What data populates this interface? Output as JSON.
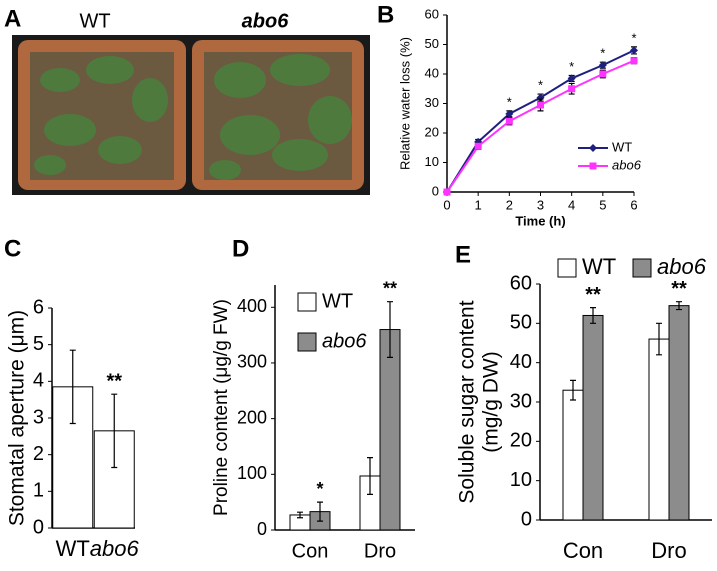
{
  "photo": {
    "panel": "A",
    "labels": [
      "WT",
      "abo6"
    ]
  },
  "chart_data": [
    {
      "type": "line",
      "panel": "B",
      "xlabel": "Time (h)",
      "ylabel": "Relative water loss (%)",
      "x": [
        0,
        1,
        2,
        3,
        4,
        5,
        6
      ],
      "xlim": [
        0,
        6
      ],
      "xticks": [
        0,
        1,
        2,
        3,
        4,
        5,
        6
      ],
      "ylim": [
        0,
        60
      ],
      "yticks": [
        0,
        10,
        20,
        30,
        40,
        50,
        60
      ],
      "series": [
        {
          "name": "WT",
          "color": "#1f1f80",
          "values": [
            0,
            17,
            26.5,
            32,
            38.5,
            43,
            48
          ],
          "errors": [
            0,
            0.8,
            1,
            1.2,
            1,
            1,
            1.2
          ]
        },
        {
          "name": "abo6",
          "color": "#ff33ff",
          "values": [
            0,
            15.5,
            24,
            29.5,
            35,
            40,
            44.5
          ],
          "errors": [
            0,
            1,
            1.2,
            2,
            1.8,
            1.3,
            1
          ]
        }
      ],
      "significance": [
        null,
        null,
        "*",
        "*",
        "*",
        "*",
        "*"
      ]
    },
    {
      "type": "bar",
      "panel": "C",
      "ylabel": [
        "Stomatal aperture (μm)"
      ],
      "categories": [
        "WT",
        "abo6"
      ],
      "ylim": [
        0,
        6
      ],
      "yticks": [
        0,
        1,
        2,
        3,
        4,
        5,
        6
      ],
      "series": [
        {
          "color": "#ffffff",
          "values": [
            3.85,
            2.65
          ],
          "errors": [
            1,
            1
          ],
          "significance": [
            null,
            "**"
          ]
        }
      ]
    },
    {
      "type": "bar",
      "panel": "D",
      "ylabel": [
        "Proline content (μg/g FW)"
      ],
      "categories": [
        "Con",
        "Dro"
      ],
      "ylim": [
        0,
        440
      ],
      "yticks": [
        0,
        100,
        200,
        300,
        400
      ],
      "series": [
        {
          "name": "WT",
          "color": "#ffffff",
          "values": [
            27,
            97
          ],
          "errors": [
            5,
            33
          ],
          "significance": [
            null,
            null
          ]
        },
        {
          "name": "abo6",
          "color": "#8c8c8c",
          "values": [
            33,
            360
          ],
          "errors": [
            17,
            50
          ],
          "significance": [
            "*",
            "**"
          ]
        }
      ]
    },
    {
      "type": "bar",
      "panel": "E",
      "ylabel": [
        "Soluble sugar content",
        "(mg/g DW)"
      ],
      "categories": [
        "Con",
        "Dro"
      ],
      "ylim": [
        0,
        60
      ],
      "yticks": [
        0,
        10,
        20,
        30,
        40,
        50,
        60
      ],
      "series": [
        {
          "name": "WT",
          "color": "#ffffff",
          "values": [
            33,
            46
          ],
          "errors": [
            2.5,
            4
          ],
          "significance": [
            null,
            null
          ]
        },
        {
          "name": "abo6",
          "color": "#8c8c8c",
          "values": [
            52,
            54.5
          ],
          "errors": [
            2,
            1
          ],
          "significance": [
            "**",
            "**"
          ]
        }
      ]
    }
  ]
}
